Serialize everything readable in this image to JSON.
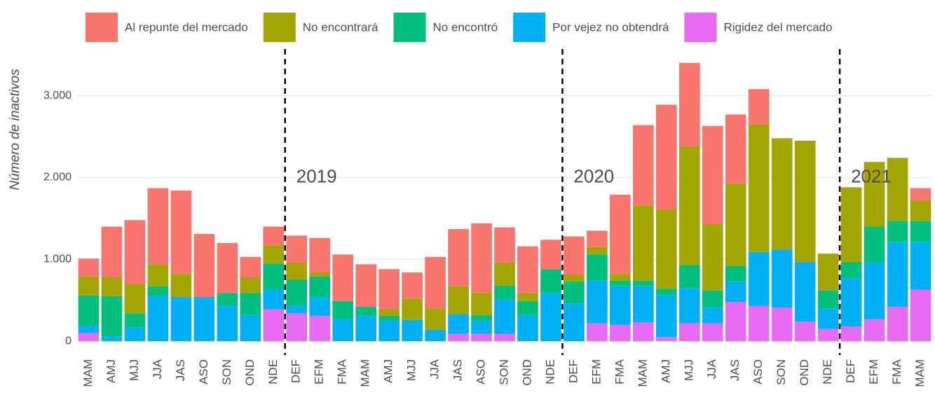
{
  "chart_data": {
    "type": "stacked_bar",
    "y_label": "Número de inactivos",
    "categories": [
      "MAM",
      "AMJ",
      "MJJ",
      "JJA",
      "JAS",
      "ASO",
      "SON",
      "OND",
      "NDE",
      "DEF",
      "EFM",
      "FMA",
      "MAM",
      "AMJ",
      "MJJ",
      "JJA",
      "JAS",
      "ASO",
      "SON",
      "OND",
      "NDE",
      "DEF",
      "EFM",
      "FMA",
      "MAM",
      "AMJ",
      "MJJ",
      "JJA",
      "JAS",
      "ASO",
      "SON",
      "OND",
      "NDE",
      "DEF",
      "EFM",
      "FMA",
      "MAM"
    ],
    "series": [
      {
        "name": "Rigidez del mercado",
        "color": "#E76BF3",
        "values": [
          100,
          0,
          0,
          0,
          0,
          0,
          0,
          0,
          390,
          340,
          310,
          0,
          0,
          0,
          0,
          0,
          90,
          90,
          90,
          0,
          0,
          0,
          220,
          200,
          230,
          50,
          220,
          220,
          480,
          430,
          410,
          240,
          150,
          180,
          270,
          420,
          630
        ]
      },
      {
        "name": "Por vejez no obtendrá",
        "color": "#00B0F6",
        "values": [
          90,
          60,
          170,
          550,
          540,
          540,
          430,
          320,
          240,
          90,
          230,
          270,
          310,
          250,
          260,
          140,
          240,
          160,
          420,
          320,
          590,
          460,
          520,
          470,
          440,
          510,
          430,
          190,
          250,
          660,
          710,
          730,
          250,
          590,
          690,
          790,
          580
        ]
      },
      {
        "name": "No encontró",
        "color": "#00BF7D",
        "values": [
          370,
          490,
          170,
          120,
          0,
          0,
          160,
          270,
          320,
          320,
          250,
          220,
          110,
          60,
          0,
          0,
          0,
          70,
          170,
          170,
          290,
          270,
          320,
          70,
          70,
          80,
          280,
          210,
          190,
          0,
          0,
          0,
          220,
          200,
          440,
          260,
          260
        ]
      },
      {
        "name": "No encontrará",
        "color": "#A3A500",
        "values": [
          230,
          230,
          360,
          270,
          280,
          0,
          0,
          190,
          220,
          210,
          50,
          0,
          0,
          80,
          260,
          260,
          340,
          270,
          280,
          100,
          0,
          80,
          90,
          80,
          920,
          970,
          1450,
          810,
          1010,
          1560,
          1360,
          1480,
          450,
          910,
          790,
          770,
          250
        ]
      },
      {
        "name": "Al repunte del mercado",
        "color": "#F8766D",
        "values": [
          220,
          620,
          780,
          930,
          1020,
          770,
          610,
          250,
          230,
          330,
          420,
          570,
          520,
          490,
          320,
          630,
          700,
          850,
          430,
          570,
          360,
          470,
          200,
          970,
          980,
          1280,
          1020,
          1200,
          840,
          430,
          0,
          0,
          0,
          0,
          0,
          0,
          150
        ]
      }
    ],
    "legend_order": [
      4,
      3,
      2,
      1,
      0
    ],
    "annotations": [
      "2019",
      "2020",
      "2021"
    ],
    "ylim": [
      -170,
      3570
    ],
    "yticks": [
      0,
      {
        "value": 1000,
        "label": "1.000"
      },
      {
        "value": 2000,
        "label": "2.000"
      },
      {
        "value": 3000,
        "label": "3.000"
      }
    ],
    "grid": true
  }
}
